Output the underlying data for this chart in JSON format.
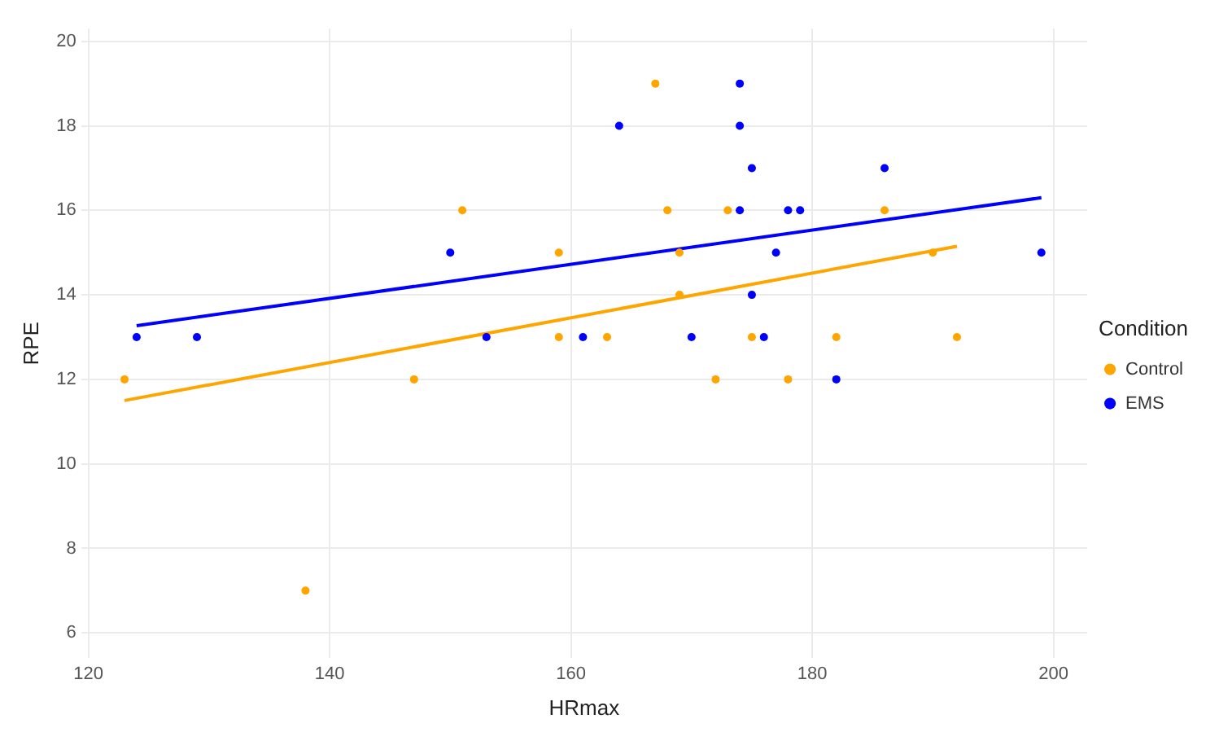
{
  "chart_data": {
    "type": "scatter",
    "xlabel": "HRmax",
    "ylabel": "RPE",
    "legend_title": "Condition",
    "legend": "right",
    "grid": true,
    "marker": "circle",
    "xlim": [
      119.4,
      202.8
    ],
    "xticks": [
      120,
      140,
      160,
      180,
      200
    ],
    "ylim": [
      5.4,
      20.3
    ],
    "yticks": [
      6,
      8,
      10,
      12,
      14,
      16,
      18,
      20
    ],
    "series": [
      {
        "name": "Control",
        "color": "#ffa500",
        "x": [
          123,
          138,
          147,
          151,
          159,
          159,
          163,
          167,
          168,
          169,
          169,
          172,
          173,
          175,
          178,
          182,
          186,
          190,
          192
        ],
        "values": [
          12,
          7,
          12,
          16,
          15,
          13,
          13,
          19,
          16,
          15,
          14,
          12,
          16,
          13,
          12,
          13,
          16,
          15,
          13
        ]
      },
      {
        "name": "EMS",
        "color": "#0000ff",
        "x": [
          124,
          129,
          150,
          153,
          161,
          164,
          170,
          174,
          174,
          174,
          175,
          175,
          176,
          177,
          178,
          179,
          182,
          186,
          199
        ],
        "values": [
          13,
          13,
          15,
          13,
          13,
          18,
          13,
          19,
          18,
          16,
          17,
          14,
          13,
          15,
          16,
          16,
          12,
          17,
          15
        ]
      },
      {
        "type": "line",
        "color": "#ffa500",
        "x": [
          123,
          192
        ],
        "values": [
          11.5,
          15.15
        ],
        "marker": "none"
      },
      {
        "type": "line",
        "color": "#0000ff",
        "x": [
          124,
          199
        ],
        "values": [
          13.27,
          16.3
        ],
        "marker": "none"
      }
    ]
  }
}
